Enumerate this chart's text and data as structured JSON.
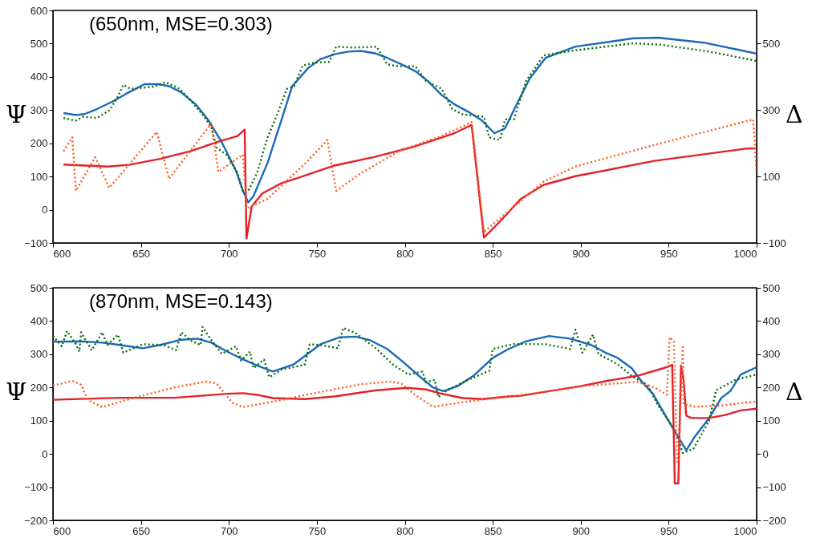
{
  "chart_data": [
    {
      "type": "line",
      "annotations": [
        "(650nm, MSE=0.303)"
      ],
      "ylabel": "Ψ",
      "y2label": "Δ",
      "xlim": [
        600,
        1000
      ],
      "xticks": [
        600,
        650,
        700,
        750,
        800,
        850,
        900,
        950,
        1000
      ],
      "ylim": [
        -100,
        600
      ],
      "yticks": [
        -100,
        0,
        100,
        200,
        300,
        400,
        500,
        600
      ],
      "y2lim": [
        -100,
        600
      ],
      "y2ticks": [
        -100,
        100,
        300,
        500
      ],
      "series": [
        {
          "color": "#1a6ab8",
          "line_style": "solid",
          "axis": "y",
          "x": [
            606,
            613,
            618,
            625,
            634,
            643,
            652,
            660,
            666,
            673,
            681,
            688,
            696,
            704,
            708,
            711,
            714,
            722,
            730,
            736,
            745,
            752,
            760,
            768,
            775,
            783,
            790,
            798,
            806,
            813,
            821,
            828,
            836,
            844,
            851,
            857,
            863,
            871,
            880,
            897,
            930,
            944,
            970,
            991,
            1000
          ],
          "values": [
            291,
            285,
            288,
            303,
            326,
            353,
            378,
            378,
            372,
            353,
            318,
            272,
            203,
            118,
            57,
            22,
            41,
            141,
            272,
            372,
            426,
            453,
            468,
            476,
            478,
            471,
            457,
            438,
            417,
            388,
            345,
            318,
            295,
            268,
            230,
            245,
            311,
            395,
            457,
            491,
            516,
            518,
            503,
            480,
            470
          ]
        },
        {
          "color": "#0a6a0a",
          "line_style": "dotted",
          "axis": "y",
          "x": [
            606,
            613,
            617,
            625,
            632,
            637,
            640,
            644,
            657,
            664,
            672,
            678,
            685,
            690,
            693,
            699,
            705,
            708,
            711,
            716,
            722,
            727,
            733,
            737,
            742,
            749,
            757,
            761,
            771,
            784,
            790,
            796,
            806,
            812,
            821,
            827,
            833,
            845,
            848,
            854,
            857,
            862,
            869,
            879,
            897,
            930,
            945,
            973,
            1000
          ],
          "values": [
            276,
            268,
            280,
            276,
            299,
            341,
            376,
            364,
            370,
            384,
            364,
            330,
            287,
            249,
            187,
            164,
            110,
            53,
            57,
            110,
            218,
            280,
            364,
            372,
            434,
            443,
            445,
            491,
            488,
            491,
            438,
            432,
            432,
            388,
            364,
            303,
            287,
            280,
            218,
            210,
            272,
            272,
            388,
            465,
            480,
            501,
            497,
            476,
            448
          ]
        },
        {
          "color": "#e3202a",
          "line_style": "solid",
          "axis": "y2",
          "x": [
            606,
            631,
            643,
            661,
            678,
            693,
            705,
            709,
            710,
            713,
            719,
            730,
            739,
            760,
            783,
            806,
            828,
            838,
            845,
            854,
            866,
            879,
            897,
            942,
            994,
            1000
          ],
          "values": [
            136,
            130,
            135,
            153,
            176,
            203,
            222,
            241,
            -86,
            10,
            49,
            80,
            95,
            133,
            159,
            191,
            230,
            255,
            -84,
            -36,
            33,
            75,
            101,
            147,
            184,
            185
          ]
        },
        {
          "color": "#ff5a1f",
          "line_style": "dotted",
          "axis": "y2",
          "x": [
            606,
            611,
            613,
            624,
            632,
            659,
            666,
            690,
            694,
            708,
            710,
            722,
            743,
            756,
            761,
            775,
            798,
            821,
            838,
            845,
            879,
            897,
            942,
            998,
            1000
          ],
          "values": [
            176,
            218,
            57,
            158,
            66,
            234,
            93,
            260,
            114,
            166,
            3,
            33,
            137,
            210,
            57,
            110,
            180,
            222,
            264,
            -67,
            85,
            130,
            195,
            272,
            114
          ]
        }
      ]
    },
    {
      "type": "line",
      "annotations": [
        "(870nm, MSE=0.143)"
      ],
      "ylabel": "Ψ",
      "y2label": "Δ",
      "xlim": [
        600,
        1000
      ],
      "xticks": [
        600,
        650,
        700,
        750,
        800,
        850,
        900,
        950,
        1000
      ],
      "ylim": [
        -200,
        500
      ],
      "yticks": [
        -200,
        -100,
        0,
        100,
        200,
        300,
        400,
        500
      ],
      "y2lim": [
        -200,
        500
      ],
      "y2ticks": [
        -200,
        -100,
        0,
        100,
        200,
        300,
        400,
        500
      ],
      "series": [
        {
          "color": "#1a6ab8",
          "line_style": "solid",
          "axis": "y",
          "x": [
            600,
            616,
            628,
            638,
            651,
            661,
            672,
            682,
            690,
            699,
            708,
            716,
            725,
            737,
            745,
            752,
            763,
            772,
            780,
            790,
            799,
            808,
            816,
            822,
            830,
            839,
            850,
            859,
            869,
            882,
            894,
            906,
            914,
            921,
            929,
            935,
            941,
            949,
            956,
            960,
            965,
            973,
            980,
            985,
            991,
            1000
          ],
          "values": [
            338,
            339,
            335,
            328,
            318,
            328,
            343,
            347,
            335,
            308,
            285,
            266,
            248,
            270,
            302,
            330,
            351,
            353,
            343,
            316,
            277,
            235,
            200,
            189,
            204,
            235,
            289,
            316,
            339,
            355,
            347,
            328,
            305,
            289,
            258,
            216,
            181,
            108,
            46,
            11,
            53,
            108,
            169,
            189,
            239,
            261
          ]
        },
        {
          "color": "#0a6a0a",
          "line_style": "dotted",
          "axis": "y",
          "x": [
            600,
            605,
            608,
            613,
            615,
            616,
            622,
            628,
            631,
            637,
            640,
            651,
            663,
            670,
            673,
            679,
            684,
            685,
            690,
            696,
            704,
            707,
            712,
            714,
            720,
            723,
            730,
            743,
            746,
            752,
            762,
            765,
            772,
            784,
            793,
            802,
            810,
            812,
            817,
            819,
            824,
            836,
            848,
            850,
            862,
            880,
            894,
            897,
            901,
            907,
            910,
            921,
            930,
            938,
            944,
            950,
            955,
            958,
            964,
            973,
            977,
            988,
            1000
          ],
          "values": [
            355,
            324,
            370,
            331,
            308,
            366,
            312,
            366,
            328,
            359,
            305,
            330,
            328,
            312,
            366,
            339,
            328,
            382,
            343,
            301,
            324,
            281,
            308,
            258,
            284,
            231,
            254,
            268,
            330,
            328,
            318,
            379,
            364,
            316,
            270,
            239,
            248,
            216,
            223,
            171,
            192,
            223,
            250,
            316,
            331,
            330,
            316,
            374,
            305,
            359,
            301,
            270,
            231,
            208,
            146,
            100,
            53,
            3,
            15,
            100,
            192,
            223,
            239
          ]
        },
        {
          "color": "#e3202a",
          "line_style": "solid",
          "axis": "y2",
          "x": [
            600,
            638,
            669,
            684,
            699,
            708,
            717,
            725,
            743,
            760,
            783,
            801,
            812,
            821,
            833,
            844,
            859,
            866,
            882,
            900,
            915,
            932,
            947,
            952,
            953.5,
            955.5,
            957,
            958.5,
            960,
            963,
            973,
            982,
            991,
            1000
          ],
          "values": [
            163,
            169,
            169,
            175,
            181,
            183,
            177,
            168,
            165,
            173,
            191,
            199,
            194,
            181,
            168,
            165,
            173,
            175,
            189,
            204,
            220,
            235,
            258,
            268,
            -89,
            -89,
            266,
            223,
            115,
            108,
            108,
            117,
            131,
            136
          ]
        },
        {
          "color": "#ff5a1f",
          "line_style": "dotted",
          "axis": "y2",
          "x": [
            600,
            611,
            616,
            620,
            628,
            646,
            669,
            687,
            693,
            702,
            708,
            730,
            743,
            775,
            792,
            798,
            806,
            816,
            836,
            859,
            880,
            900,
            932,
            942,
            949,
            950.5,
            953,
            954.8,
            955.6,
            958,
            958.5,
            965,
            980,
            1000
          ],
          "values": [
            206,
            220,
            208,
            162,
            141,
            169,
            200,
            218,
            212,
            154,
            141,
            162,
            177,
            210,
            218,
            212,
            177,
            142,
            158,
            173,
            187,
            204,
            217,
            200,
            178,
            351,
            339,
            -24,
            -24,
            328,
            150,
            142,
            146,
            158
          ]
        }
      ]
    }
  ]
}
